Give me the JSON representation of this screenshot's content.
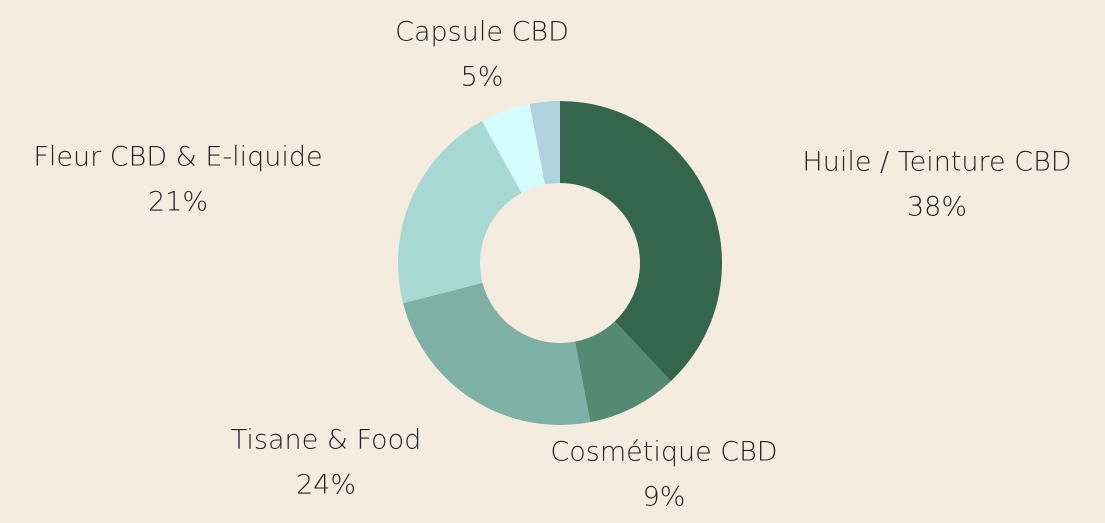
{
  "chart_data": {
    "type": "donut",
    "categories": [
      "Huile / Teinture CBD",
      "Cosmétique CBD",
      "Tisane & Food",
      "Fleur CBD & E-liquide",
      "Capsule CBD",
      null
    ],
    "values": [
      38,
      9,
      24,
      21,
      5,
      3
    ],
    "value_labels": [
      "38%",
      "9%",
      "24%",
      "21%",
      "5%",
      null
    ],
    "colors": [
      "#33664b",
      "#548a74",
      "#7fb0a5",
      "#a8d8d2",
      "#d4fdfd",
      "#aed3de"
    ]
  }
}
